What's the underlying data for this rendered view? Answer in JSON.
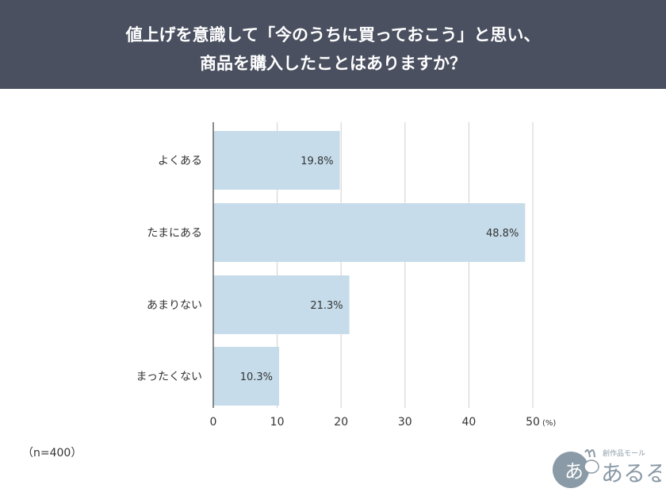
{
  "header": {
    "title_line1": "値上げを意識して「今のうちに買っておこう」と思い、",
    "title_line2": "商品を購入したことはありますか？"
  },
  "chart_data": {
    "type": "bar",
    "orientation": "horizontal",
    "categories": [
      "よくある",
      "たまにある",
      "あまりない",
      "まったくない"
    ],
    "values": [
      19.8,
      48.8,
      21.3,
      10.3
    ],
    "value_labels": [
      "19.8%",
      "48.8%",
      "21.3%",
      "10.3%"
    ],
    "xticks": [
      "0",
      "10",
      "20",
      "30",
      "40",
      "50"
    ],
    "unit_label": "(%)",
    "xlim": [
      0,
      50
    ],
    "grid": true
  },
  "sample_note": "（n=400）",
  "logo": {
    "caption": "創作品モール",
    "name": "あるる",
    "mark": "あ"
  },
  "colors": {
    "header_bg": "#4a5060",
    "bar_fill": "#c6dcea",
    "grid": "#cfcfcf",
    "axis": "#666666",
    "text": "#333333",
    "logo": "#8a9aa6"
  }
}
